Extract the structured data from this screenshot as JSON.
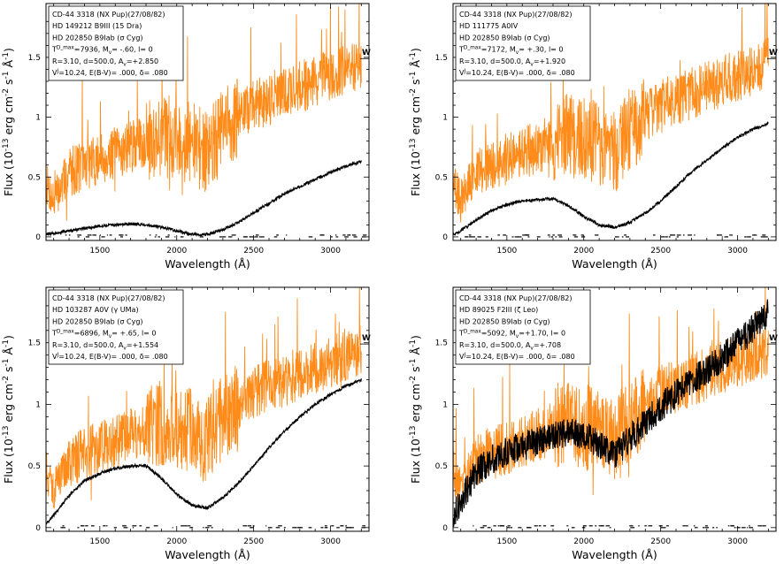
{
  "chart_data": [
    {
      "type": "line",
      "xlabel": "Wavelength (Å)",
      "ylabel": "Flux (10^-13 erg cm^-2 s^-1 Å^-1)",
      "xlim": [
        1150,
        3250
      ],
      "ylim": [
        -0.03,
        1.95
      ],
      "xticks": [
        "1500",
        "2000",
        "2500",
        "3000"
      ],
      "yticks": [
        "0",
        "0.5",
        "1",
        "1.5"
      ],
      "legend": [
        "CD-44 3318 (NX Pup)(27/08/82)",
        "HD 149212 B9III (15 Dra)",
        "HD 202850 B9Iab (σ Cyg)",
        "T^D_max=7936, M_v= -.60, l= 0",
        "R=3.10, d=500.0, A_v=+2.850",
        "V^J=10.24, E(B-V)= .000, δ= .080"
      ],
      "w_label": "W",
      "series": [
        {
          "color": "#ff8c1a",
          "x": [
            1150,
            1200,
            1300,
            1400,
            1500,
            1600,
            1700,
            1800,
            1900,
            2000,
            2100,
            2200,
            2300,
            2400,
            2500,
            2600,
            2700,
            2800,
            2900,
            3000,
            3100,
            3200
          ],
          "y": [
            0.45,
            0.3,
            0.55,
            0.6,
            0.65,
            0.7,
            0.75,
            0.8,
            0.85,
            0.82,
            0.78,
            0.7,
            0.9,
            1.0,
            1.1,
            1.15,
            1.2,
            1.25,
            1.3,
            1.35,
            1.4,
            1.45
          ]
        },
        {
          "color": "#000000",
          "x": [
            1150,
            1200,
            1300,
            1400,
            1500,
            1600,
            1700,
            1800,
            1900,
            2000,
            2100,
            2200,
            2300,
            2400,
            2500,
            2600,
            2700,
            2800,
            2900,
            3000,
            3100,
            3200
          ],
          "y": [
            0.02,
            0.03,
            0.05,
            0.07,
            0.09,
            0.1,
            0.11,
            0.1,
            0.08,
            0.05,
            0.02,
            0.02,
            0.06,
            0.12,
            0.2,
            0.28,
            0.36,
            0.42,
            0.48,
            0.54,
            0.59,
            0.63
          ]
        }
      ]
    },
    {
      "type": "line",
      "xlabel": "Wavelength (Å)",
      "ylabel": "Flux (10^-13 erg cm^-2 s^-1 Å^-1)",
      "xlim": [
        1150,
        3250
      ],
      "ylim": [
        -0.03,
        1.95
      ],
      "xticks": [
        "1500",
        "2000",
        "2500",
        "3000"
      ],
      "yticks": [
        "0",
        "0.5",
        "1",
        "1.5"
      ],
      "legend": [
        "CD-44 3318 (NX Pup)(27/08/82)",
        "HD 111775 A0IV",
        "HD 202850 B9Iab (σ Cyg)",
        "T^D_max=7172, M_v= +.30, l= 0",
        "R=3.10, d=500.0, A_v=+1.920",
        "V^J=10.24, E(B-V)= .000, δ= .080"
      ],
      "w_label": "W",
      "series": [
        {
          "color": "#ff8c1a",
          "x": [
            1150,
            1200,
            1300,
            1400,
            1500,
            1600,
            1700,
            1800,
            1900,
            2000,
            2100,
            2200,
            2300,
            2400,
            2500,
            2600,
            2700,
            2800,
            2900,
            3000,
            3100,
            3200
          ],
          "y": [
            0.45,
            0.3,
            0.55,
            0.6,
            0.65,
            0.7,
            0.75,
            0.8,
            0.85,
            0.82,
            0.78,
            0.7,
            0.9,
            1.0,
            1.1,
            1.15,
            1.2,
            1.25,
            1.3,
            1.35,
            1.4,
            1.45
          ]
        },
        {
          "color": "#000000",
          "x": [
            1150,
            1200,
            1300,
            1400,
            1500,
            1600,
            1700,
            1800,
            1900,
            2000,
            2100,
            2200,
            2300,
            2400,
            2500,
            2600,
            2700,
            2800,
            2900,
            3000,
            3100,
            3200
          ],
          "y": [
            0.02,
            0.05,
            0.14,
            0.22,
            0.27,
            0.3,
            0.31,
            0.32,
            0.26,
            0.17,
            0.1,
            0.08,
            0.12,
            0.2,
            0.3,
            0.42,
            0.54,
            0.64,
            0.74,
            0.83,
            0.9,
            0.95
          ]
        }
      ]
    },
    {
      "type": "line",
      "xlabel": "Wavelength (Å)",
      "ylabel": "Flux (10^-13 erg cm^-2 s^-1 Å^-1)",
      "xlim": [
        1150,
        3250
      ],
      "ylim": [
        -0.03,
        1.95
      ],
      "xticks": [
        "1500",
        "2000",
        "2500",
        "3000"
      ],
      "yticks": [
        "0",
        "0.5",
        "1",
        "1.5"
      ],
      "legend": [
        "CD-44 3318 (NX Pup)(27/08/82)",
        "HD 103287 A0V (γ UMa)",
        "HD 202850 B9Iab (σ Cyg)",
        "T^D_max=6896, M_v= +.65, l= 0",
        "R=3.10, d=500.0, A_v=+1.554",
        "V^J=10.24, E(B-V)= .000, δ= .080"
      ],
      "w_label": "W",
      "series": [
        {
          "color": "#ff8c1a",
          "x": [
            1150,
            1200,
            1300,
            1400,
            1500,
            1600,
            1700,
            1800,
            1900,
            2000,
            2100,
            2200,
            2300,
            2400,
            2500,
            2600,
            2700,
            2800,
            2900,
            3000,
            3100,
            3200
          ],
          "y": [
            0.45,
            0.3,
            0.55,
            0.6,
            0.65,
            0.7,
            0.75,
            0.8,
            0.85,
            0.82,
            0.78,
            0.7,
            0.9,
            1.0,
            1.1,
            1.15,
            1.2,
            1.25,
            1.3,
            1.35,
            1.4,
            1.45
          ]
        },
        {
          "color": "#000000",
          "x": [
            1150,
            1200,
            1300,
            1400,
            1500,
            1600,
            1700,
            1800,
            1900,
            2000,
            2100,
            2200,
            2300,
            2400,
            2500,
            2600,
            2700,
            2800,
            2900,
            3000,
            3100,
            3200
          ],
          "y": [
            0.03,
            0.1,
            0.26,
            0.38,
            0.44,
            0.48,
            0.5,
            0.5,
            0.4,
            0.27,
            0.18,
            0.16,
            0.24,
            0.36,
            0.5,
            0.65,
            0.78,
            0.9,
            1.0,
            1.08,
            1.15,
            1.2
          ]
        }
      ]
    },
    {
      "type": "line",
      "xlabel": "Wavelength (Å)",
      "ylabel": "Flux (10^-13 erg cm^-2 s^-1 Å^-1)",
      "xlim": [
        1150,
        3250
      ],
      "ylim": [
        -0.03,
        1.95
      ],
      "xticks": [
        "1500",
        "2000",
        "2500",
        "3000"
      ],
      "yticks": [
        "0",
        "0.5",
        "1",
        "1.5"
      ],
      "legend": [
        "CD-44 3318 (NX Pup)(27/08/82)",
        "HD 89025 F2III (ζ Leo)",
        "HD 202850 B9Iab (σ Cyg)",
        "T^D_max=5092, M_v=+1.70, l= 0",
        "R=3.10, d=500.0, A_v=+.708",
        "V^J=10.24, E(B-V)= .000, δ= .080"
      ],
      "w_label": "W",
      "series": [
        {
          "color": "#ff8c1a",
          "x": [
            1150,
            1200,
            1300,
            1400,
            1500,
            1600,
            1700,
            1800,
            1900,
            2000,
            2100,
            2200,
            2300,
            2400,
            2500,
            2600,
            2700,
            2800,
            2900,
            3000,
            3100,
            3200
          ],
          "y": [
            0.45,
            0.3,
            0.55,
            0.6,
            0.65,
            0.7,
            0.75,
            0.8,
            0.85,
            0.82,
            0.78,
            0.7,
            0.9,
            1.0,
            1.1,
            1.15,
            1.2,
            1.25,
            1.3,
            1.35,
            1.4,
            1.45
          ]
        },
        {
          "color": "#000000",
          "x": [
            1150,
            1200,
            1300,
            1400,
            1500,
            1600,
            1700,
            1800,
            1900,
            2000,
            2100,
            2200,
            2300,
            2400,
            2500,
            2600,
            2700,
            2800,
            2900,
            3000,
            3100,
            3200
          ],
          "y": [
            0.1,
            0.22,
            0.45,
            0.55,
            0.62,
            0.66,
            0.7,
            0.74,
            0.78,
            0.75,
            0.68,
            0.6,
            0.72,
            0.85,
            0.98,
            1.08,
            1.18,
            1.28,
            1.38,
            1.5,
            1.62,
            1.75
          ]
        }
      ]
    }
  ]
}
